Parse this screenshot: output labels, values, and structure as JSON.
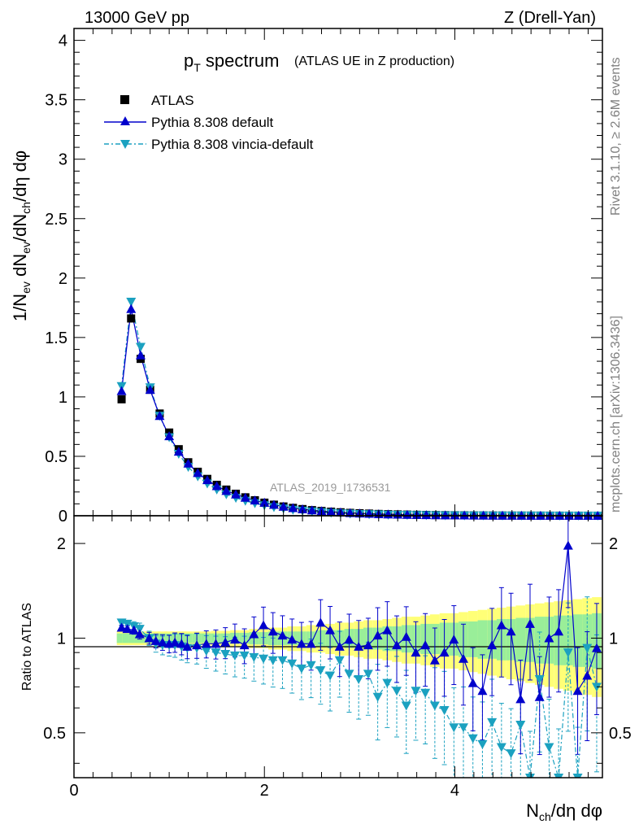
{
  "header": {
    "left": "13000 GeV pp",
    "right": "Z (Drell-Yan)"
  },
  "side": {
    "rivet": "Rivet 3.1.10, ≥ 2.6M events",
    "mcplots": "mcplots.cern.ch [arXiv:1306.3436]"
  },
  "main": {
    "title": "p",
    "title_sub": "T",
    "title_rest": " spectrum",
    "title_extra": "(ATLAS UE in Z production)",
    "analysis": "ATLAS_2019_I1736531",
    "ylabel": "1/N_{ev} dN_{ev}/dN_{ch}/dη dφ",
    "yticks": [
      "0",
      "0.5",
      "1",
      "1.5",
      "2",
      "2.5",
      "3",
      "3.5",
      "4"
    ]
  },
  "ratio": {
    "ylabel": "Ratio to ATLAS",
    "yticks_left": [
      "0.5",
      "1",
      "2"
    ],
    "yticks_right": [
      "0.5",
      "1",
      "2"
    ]
  },
  "xaxis": {
    "label": "N_{ch}/dη dφ",
    "ticks": [
      "0",
      "2",
      "4"
    ]
  },
  "legend": [
    {
      "name": "ATLAS",
      "marker": "square",
      "color": "#000000"
    },
    {
      "name": "Pythia 8.308 default",
      "marker": "triangle-up",
      "color": "#0000cc"
    },
    {
      "name": "Pythia 8.308 vincia-default",
      "marker": "triangle-down",
      "color": "#1ba1c0"
    }
  ],
  "chart_data": [
    {
      "type": "scatter",
      "xlim": [
        0,
        5.55
      ],
      "ylim": [
        0,
        4.1
      ],
      "x": [
        0.5,
        0.6,
        0.7,
        0.8,
        0.9,
        1.0,
        1.1,
        1.2,
        1.3,
        1.4,
        1.5,
        1.6,
        1.7,
        1.8,
        1.9,
        2.0,
        2.1,
        2.2,
        2.3,
        2.4,
        2.5,
        2.6,
        2.7,
        2.8,
        2.9,
        3.0,
        3.1,
        3.2,
        3.3,
        3.4,
        3.5,
        3.6,
        3.7,
        3.8,
        3.9,
        4.0,
        4.1,
        4.2,
        4.3,
        4.4,
        4.5,
        4.6,
        4.7,
        4.8,
        4.9,
        5.0,
        5.1,
        5.2,
        5.3,
        5.4,
        5.5
      ],
      "series": [
        {
          "name": "ATLAS",
          "values": [
            0.98,
            1.66,
            1.32,
            1.06,
            0.86,
            0.7,
            0.56,
            0.45,
            0.37,
            0.31,
            0.26,
            0.22,
            0.185,
            0.155,
            0.13,
            0.11,
            0.093,
            0.078,
            0.066,
            0.056,
            0.047,
            0.04,
            0.034,
            0.029,
            0.024,
            0.021,
            0.018,
            0.015,
            0.013,
            0.011,
            0.0095,
            0.008,
            0.007,
            0.006,
            0.005,
            0.0042,
            0.0036,
            0.003,
            0.0026,
            0.0022,
            0.0019,
            0.0016,
            0.0014,
            0.0012,
            0.001,
            0.0009,
            0.0008,
            0.0007,
            0.0006,
            0.0005,
            0.0004
          ]
        },
        {
          "name": "Pythia 8.308 default",
          "values": [
            1.05,
            1.74,
            1.35,
            1.06,
            0.84,
            0.67,
            0.54,
            0.44,
            0.36,
            0.3,
            0.25,
            0.21,
            0.18,
            0.152,
            0.129,
            0.11,
            0.092,
            0.077,
            0.065,
            0.055,
            0.046,
            0.039,
            0.033,
            0.028,
            0.023,
            0.02,
            0.017,
            0.014,
            0.012,
            0.01,
            0.0088,
            0.0075,
            0.0064,
            0.0054,
            0.0046,
            0.0039,
            0.0033,
            0.0028,
            0.0024,
            0.002,
            0.0017,
            0.0015,
            0.0013,
            0.0011,
            0.0009,
            0.0008,
            0.0007,
            0.0006,
            0.0005,
            0.0004,
            0.0004
          ]
        },
        {
          "name": "Pythia 8.308 vincia-default",
          "values": [
            1.09,
            1.8,
            1.42,
            1.08,
            0.84,
            0.66,
            0.52,
            0.41,
            0.33,
            0.27,
            0.22,
            0.18,
            0.15,
            0.125,
            0.104,
            0.087,
            0.072,
            0.06,
            0.05,
            0.042,
            0.035,
            0.029,
            0.024,
            0.02,
            0.017,
            0.014,
            0.012,
            0.01,
            0.008,
            0.007,
            0.006,
            0.005,
            0.0042,
            0.0035,
            0.0029,
            0.0024,
            0.002,
            0.0017,
            0.0014,
            0.0012,
            0.001,
            0.0008,
            0.0007,
            0.0006,
            0.0005,
            0.0004,
            0.0003,
            0.0003,
            0.0002,
            0.0002,
            0.0002
          ]
        }
      ]
    },
    {
      "type": "scatter",
      "log_y": true,
      "xlim": [
        0,
        5.55
      ],
      "ylim": [
        0.36,
        2.45
      ],
      "x": [
        0.5,
        0.56,
        0.63,
        0.69,
        0.79,
        0.86,
        0.93,
        1.0,
        1.06,
        1.13,
        1.19,
        1.29,
        1.39,
        1.49,
        1.59,
        1.69,
        1.79,
        1.89,
        1.99,
        2.09,
        2.19,
        2.29,
        2.39,
        2.49,
        2.59,
        2.69,
        2.79,
        2.89,
        2.99,
        3.09,
        3.19,
        3.29,
        3.39,
        3.49,
        3.59,
        3.69,
        3.79,
        3.89,
        3.99,
        4.09,
        4.19,
        4.29,
        4.39,
        4.49,
        4.59,
        4.69,
        4.79,
        4.89,
        4.99,
        5.09,
        5.19,
        5.29,
        5.39,
        5.49
      ],
      "series": [
        {
          "name": "Pythia 8.308 default",
          "values": [
            1.08,
            1.07,
            1.06,
            1.03,
            1.0,
            0.98,
            0.97,
            0.96,
            0.97,
            0.96,
            0.94,
            0.95,
            0.96,
            0.96,
            0.97,
            0.99,
            0.95,
            1.03,
            1.1,
            1.05,
            1.02,
            0.99,
            0.96,
            0.96,
            1.12,
            1.06,
            0.94,
            0.99,
            0.94,
            0.95,
            1.02,
            1.06,
            0.95,
            1.01,
            0.9,
            0.95,
            0.85,
            0.9,
            0.99,
            0.86,
            0.72,
            0.68,
            0.95,
            1.1,
            1.05,
            0.64,
            1.11,
            0.65,
            1.0,
            1.05,
            1.97,
            0.68,
            0.76,
            0.93
          ]
        },
        {
          "name": "Pythia 8.308 vincia-default",
          "values": [
            1.12,
            1.11,
            1.09,
            1.07,
            1.0,
            0.96,
            0.95,
            0.95,
            0.95,
            0.94,
            0.93,
            0.93,
            0.91,
            0.9,
            0.89,
            0.88,
            0.88,
            0.87,
            0.86,
            0.85,
            0.85,
            0.83,
            0.8,
            0.82,
            0.79,
            0.76,
            0.85,
            0.77,
            0.74,
            0.77,
            0.65,
            0.72,
            0.68,
            0.61,
            0.68,
            0.67,
            0.61,
            0.59,
            0.52,
            0.52,
            0.48,
            0.46,
            0.54,
            0.45,
            0.43,
            0.53,
            0.36,
            0.74,
            0.45,
            0.36,
            0.9,
            0.36,
            0.93,
            0.7
          ]
        }
      ],
      "band_green": [
        0.035,
        0.035,
        0.035,
        0.035,
        0.035,
        0.035,
        0.035,
        0.035,
        0.035,
        0.035,
        0.035,
        0.035,
        0.035,
        0.035,
        0.035,
        0.04,
        0.04,
        0.045,
        0.045,
        0.05,
        0.05,
        0.05,
        0.05,
        0.05,
        0.06,
        0.06,
        0.06,
        0.07,
        0.07,
        0.08,
        0.08,
        0.09,
        0.09,
        0.1,
        0.1,
        0.11,
        0.11,
        0.12,
        0.12,
        0.13,
        0.13,
        0.14,
        0.14,
        0.15,
        0.15,
        0.16,
        0.16,
        0.17,
        0.17,
        0.18,
        0.18,
        0.19,
        0.19,
        0.2
      ],
      "band_yellow": [
        0.05,
        0.05,
        0.05,
        0.05,
        0.05,
        0.05,
        0.05,
        0.05,
        0.05,
        0.05,
        0.05,
        0.05,
        0.05,
        0.055,
        0.055,
        0.06,
        0.06,
        0.07,
        0.07,
        0.08,
        0.08,
        0.09,
        0.09,
        0.1,
        0.1,
        0.11,
        0.12,
        0.12,
        0.13,
        0.14,
        0.14,
        0.15,
        0.16,
        0.17,
        0.17,
        0.18,
        0.19,
        0.2,
        0.2,
        0.21,
        0.22,
        0.23,
        0.24,
        0.25,
        0.26,
        0.27,
        0.28,
        0.29,
        0.3,
        0.31,
        0.32,
        0.33,
        0.34,
        0.35
      ]
    }
  ]
}
